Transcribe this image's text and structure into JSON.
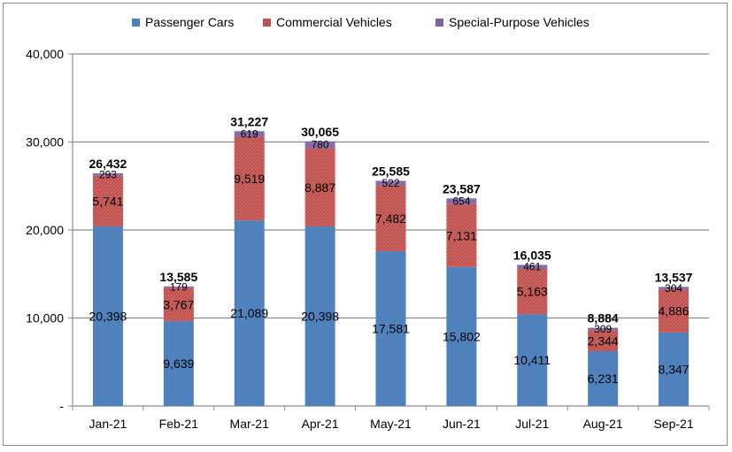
{
  "chart_data": {
    "type": "bar",
    "stacked": true,
    "title": "",
    "xlabel": "",
    "ylabel": "",
    "ylim": [
      0,
      40000
    ],
    "yticks": [
      {
        "value": 0,
        "label": "-"
      },
      {
        "value": 10000,
        "label": "10,000"
      },
      {
        "value": 20000,
        "label": "20,000"
      },
      {
        "value": 30000,
        "label": "30,000"
      },
      {
        "value": 40000,
        "label": "40,000"
      }
    ],
    "grid": true,
    "legend_position": "top-center",
    "categories": [
      "Jan-21",
      "Feb-21",
      "Mar-21",
      "Apr-21",
      "May-21",
      "Jun-21",
      "Jul-21",
      "Aug-21",
      "Sep-21"
    ],
    "series": [
      {
        "name": "Passenger Cars",
        "color": "#4f81bd",
        "values": [
          20398,
          9639,
          21089,
          20398,
          17581,
          15802,
          10411,
          6231,
          8347
        ],
        "labels": [
          "20,398",
          "9,639",
          "21,089",
          "20,398",
          "17,581",
          "15,802",
          "10,411",
          "6,231",
          "8,347"
        ]
      },
      {
        "name": "Commercial Vehicles",
        "color": "#c0504d",
        "values": [
          5741,
          3767,
          9519,
          8887,
          7482,
          7131,
          5163,
          2344,
          4886
        ],
        "labels": [
          "5,741",
          "3,767",
          "9,519",
          "8,887",
          "7,482",
          "7,131",
          "5,163",
          "2,344",
          "4,886"
        ]
      },
      {
        "name": "Special-Purpose Vehicles",
        "color": "#8064a2",
        "values": [
          293,
          179,
          619,
          780,
          522,
          654,
          461,
          309,
          304
        ],
        "labels": [
          "293",
          "179",
          "619",
          "780",
          "522",
          "654",
          "461",
          "309",
          "304"
        ]
      }
    ],
    "totals": [
      26432,
      13585,
      31227,
      30065,
      25585,
      23587,
      16035,
      8884,
      13537
    ],
    "total_labels": [
      "26,432",
      "13,585",
      "31,227",
      "30,065",
      "25,585",
      "23,587",
      "16,035",
      "8,884",
      "13,537"
    ]
  }
}
